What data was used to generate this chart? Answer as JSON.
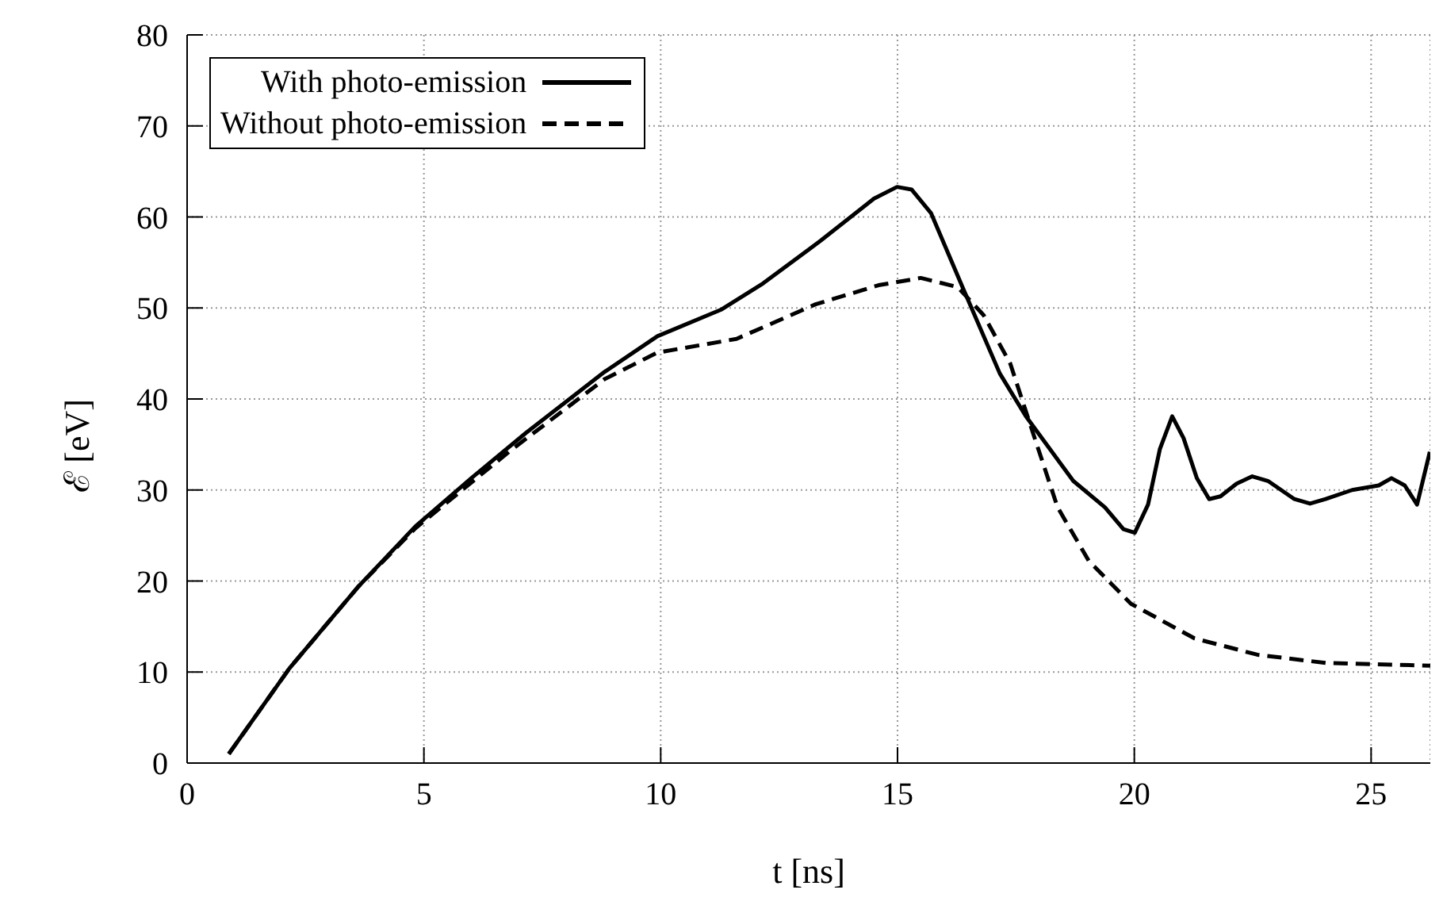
{
  "chart_data": {
    "type": "line",
    "xlabel": "t [ns]",
    "ylabel": "ℰ [eV]",
    "xlim": [
      0,
      26.25
    ],
    "ylim": [
      0,
      80
    ],
    "xticks": [
      0,
      5,
      10,
      15,
      20,
      25
    ],
    "yticks": [
      0,
      10,
      20,
      30,
      40,
      50,
      60,
      70,
      80
    ],
    "grid": true,
    "legend": "top left",
    "marker": "none",
    "series": [
      {
        "name": "With photo-emission",
        "color": "#000000",
        "line_style": "solid",
        "x": [
          0.88,
          2.16,
          3.6,
          4.82,
          6,
          7.16,
          8.82,
          9.93,
          11.27,
          12.16,
          13.38,
          14.5,
          14.99,
          15.3,
          15.71,
          16.38,
          17.16,
          17.71,
          18.71,
          19.38,
          19.77,
          20.01,
          20.29,
          20.54,
          20.8,
          21.04,
          21.32,
          21.58,
          21.82,
          22.16,
          22.49,
          22.82,
          23.38,
          23.71,
          24.04,
          24.6,
          25.16,
          25.43,
          25.71,
          25.97,
          26.24
        ],
        "values": [
          1,
          10.4,
          19.3,
          26,
          31.3,
          36.3,
          43,
          46.9,
          49.8,
          52.7,
          57.4,
          62,
          63.3,
          63,
          60.4,
          52.2,
          42.8,
          38.1,
          31,
          28.1,
          25.7,
          25.3,
          28.4,
          34.5,
          38.1,
          35.7,
          31.3,
          29,
          29.3,
          30.7,
          31.5,
          31,
          29,
          28.5,
          29,
          30,
          30.5,
          31.3,
          30.5,
          28.4,
          34.2
        ]
      },
      {
        "name": "Without photo-emission",
        "color": "#000000",
        "line_style": "dashed",
        "x": [
          0.88,
          2.16,
          3.6,
          4.82,
          6.82,
          8.82,
          9.93,
          11.6,
          13.27,
          14.6,
          15.49,
          16.27,
          16.82,
          17.38,
          17.82,
          18.38,
          19.04,
          19.93,
          21.27,
          22.6,
          24.04,
          26.25
        ],
        "values": [
          1,
          10.4,
          19.3,
          25.8,
          34.3,
          42.2,
          45.1,
          46.6,
          50.4,
          52.5,
          53.3,
          52.3,
          49.2,
          43.9,
          36.9,
          28.1,
          22.2,
          17.5,
          13.7,
          11.9,
          11,
          10.7
        ]
      }
    ]
  }
}
